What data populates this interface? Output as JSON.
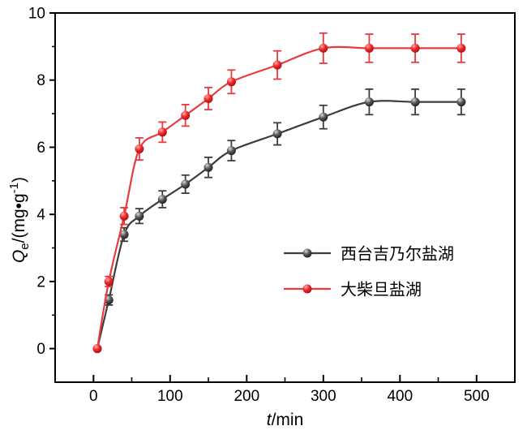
{
  "chart_data": {
    "type": "line",
    "title": "",
    "xlabel": "t/min",
    "xlabel_parts": {
      "italic": "t",
      "rest": "/min"
    },
    "ylabel": "Qe/(mg•g-1)",
    "ylabel_parts": {
      "italic": "Q",
      "sub": "e",
      "rest": "/(mg•g",
      "sup": "-1",
      "close": ")"
    },
    "xlim": [
      -50,
      550
    ],
    "ylim": [
      -1,
      10
    ],
    "x_ticks": [
      0,
      100,
      200,
      300,
      400,
      500
    ],
    "y_ticks": [
      0,
      2,
      4,
      6,
      8,
      10
    ],
    "x_minor_step": 50,
    "y_minor_step": 1,
    "grid": false,
    "legend_position": "inside-right-middle",
    "background": "#ffffff",
    "axis_color": "#000000",
    "text_color": "#000000",
    "x": [
      5,
      20,
      40,
      60,
      90,
      120,
      150,
      180,
      240,
      300,
      360,
      420,
      480
    ],
    "series": [
      {
        "name": "西台吉乃尔盐湖",
        "color": "#3d3d3d",
        "marker": "sphere-circle",
        "marker_gradient": [
          "#d9d9d9",
          "#5a5a5a",
          "#161616"
        ],
        "values": [
          0,
          1.45,
          3.4,
          3.95,
          4.45,
          4.9,
          5.4,
          5.9,
          6.4,
          6.9,
          7.35,
          7.35,
          7.35
        ],
        "errors": [
          0,
          0.15,
          0.2,
          0.22,
          0.25,
          0.27,
          0.3,
          0.3,
          0.33,
          0.35,
          0.38,
          0.38,
          0.38
        ]
      },
      {
        "name": "大柴旦盐湖",
        "color": "#e73b3e",
        "marker": "sphere-circle",
        "marker_gradient": [
          "#ffb3ab",
          "#ef2a2e",
          "#9e0d10"
        ],
        "values": [
          0,
          2.0,
          3.95,
          5.95,
          6.45,
          6.95,
          7.45,
          7.95,
          8.45,
          8.95,
          8.95,
          8.95,
          8.95
        ],
        "errors": [
          0,
          0.15,
          0.25,
          0.33,
          0.3,
          0.32,
          0.33,
          0.35,
          0.42,
          0.45,
          0.42,
          0.42,
          0.42
        ]
      }
    ]
  }
}
